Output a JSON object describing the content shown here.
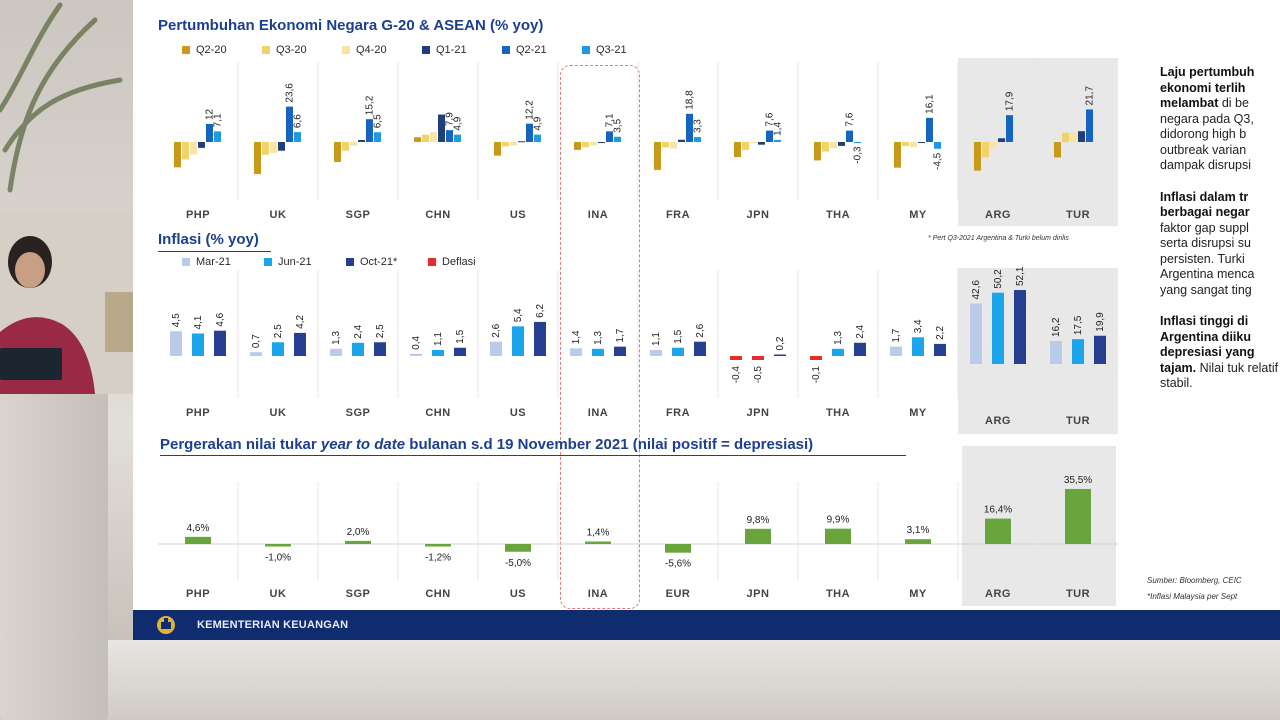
{
  "slide": {
    "title_growth": "Pertumbuhan Ekonomi Negara G-20 & ASEAN (% yoy)",
    "title_inflation": "Inflasi (% yoy)",
    "title_fx_pre": "Pergerakan nilai tukar ",
    "title_fx_italic": "year to date",
    "title_fx_post": " bulanan s.d 19 November 2021 (nilai positif = depresiasi)",
    "note_growth": "* Pert Q3-2021 Argentina & Turki belum dirilis",
    "footer": "KEMENTERIAN KEUANGAN"
  },
  "side_text": {
    "p1_bold": "Laju pertumbuh ekonomi terlih melambat",
    "p1_rest": " di be negara pada Q3, didorong high b outbreak varian dampak disrupsi",
    "p2_bold": "Inflasi dalam tr berbagai negar",
    "p2_rest": " faktor gap suppl serta disrupsi su persisten. Turki Argentina menca yang sangat ting",
    "p3_bold": "Inflasi tinggi di Argentina diiku depresiasi yang tajam.",
    "p3_rest": " Nilai tuk relatif stabil."
  },
  "sources": {
    "line1": "Sumber: Bloomberg, CEIC",
    "line2": "*Inflasi Malaysia per Sept"
  },
  "colors": {
    "q2_20": "#c9991c",
    "q3_20": "#f1d36a",
    "q4_20": "#f6e4a8",
    "q1_21": "#1f3f7a",
    "q2_21": "#1565c0",
    "q3_21": "#1e9be0",
    "mar_21": "#b9cbe8",
    "jun_21": "#1da5ec",
    "oct_21": "#25408f",
    "deflasi": "#e52d2d",
    "fx": "#6aa43c",
    "title": "#1d3f8f",
    "footer": "#0f2c6e"
  },
  "chart_data": [
    {
      "type": "bar",
      "title": "Pertumbuhan Ekonomi Negara G-20 & ASEAN (% yoy)",
      "categories": [
        "PHP",
        "UK",
        "SGP",
        "CHN",
        "US",
        "INA",
        "FRA",
        "JPN",
        "THA",
        "MY",
        "ARG",
        "TUR"
      ],
      "series": [
        {
          "name": "Q2-20",
          "values": [
            -16.9,
            -21.4,
            -13.3,
            3.2,
            -9.1,
            -5.3,
            -18.6,
            -10.1,
            -12.3,
            -17.1,
            -19.1,
            -10.3
          ]
        },
        {
          "name": "Q3-20",
          "values": [
            -11.6,
            -8.5,
            -5.8,
            4.9,
            -2.9,
            -3.5,
            -3.6,
            -5.4,
            -6.4,
            -2.7,
            -10.2,
            6.2
          ]
        },
        {
          "name": "Q4-20",
          "values": [
            -8.3,
            -7.3,
            -2.4,
            6.5,
            -2.3,
            -2.2,
            -4.3,
            -0.8,
            -4.2,
            -3.4,
            -4.3,
            6.2
          ]
        },
        {
          "name": "Q1-21",
          "values": [
            -3.9,
            -5.8,
            1.3,
            18.3,
            0.5,
            -0.7,
            1.5,
            -1.8,
            -2.6,
            -0.5,
            2.5,
            7.2
          ]
        },
        {
          "name": "Q2-21",
          "values": [
            12.0,
            23.6,
            15.2,
            7.9,
            12.2,
            7.1,
            18.8,
            7.6,
            7.6,
            16.1,
            17.9,
            21.7
          ]
        },
        {
          "name": "Q3-21",
          "values": [
            7.1,
            6.6,
            6.5,
            4.9,
            4.9,
            3.5,
            3.3,
            1.4,
            -0.3,
            -4.5,
            null,
            null
          ]
        }
      ],
      "labels_shown": {
        "Q2-21": true,
        "Q3-21": true
      }
    },
    {
      "type": "bar",
      "title": "Inflasi (% yoy)",
      "categories": [
        "PHP",
        "UK",
        "SGP",
        "CHN",
        "US",
        "INA",
        "FRA",
        "JPN",
        "THA",
        "MY",
        "ARG",
        "TUR"
      ],
      "series": [
        {
          "name": "Mar-21",
          "values": [
            4.5,
            0.7,
            1.3,
            0.4,
            2.6,
            1.4,
            1.1,
            -0.4,
            -0.1,
            1.7,
            42.6,
            16.2
          ]
        },
        {
          "name": "Jun-21",
          "values": [
            4.1,
            2.5,
            2.4,
            1.1,
            5.4,
            1.3,
            1.5,
            -0.5,
            1.3,
            3.4,
            50.2,
            17.5
          ]
        },
        {
          "name": "Oct-21*",
          "values": [
            4.6,
            4.2,
            2.5,
            1.5,
            6.2,
            1.7,
            2.6,
            0.2,
            2.4,
            2.2,
            52.1,
            19.9
          ]
        }
      ],
      "legend_extra": "Deflasi"
    },
    {
      "type": "bar",
      "title": "Pergerakan nilai tukar year to date bulanan s.d 19 November 2021 (nilai positif = depresiasi)",
      "categories": [
        "PHP",
        "UK",
        "SGP",
        "CHN",
        "US",
        "INA",
        "EUR",
        "JPN",
        "THA",
        "MY",
        "ARG",
        "TUR"
      ],
      "values": [
        4.6,
        -1.0,
        2.0,
        -1.2,
        -5.0,
        1.4,
        -5.6,
        9.8,
        9.9,
        3.1,
        16.4,
        35.5
      ],
      "value_labels": [
        "4,6%",
        "-1,0%",
        "2,0%",
        "-1,2%",
        "-5,0%",
        "1,4%",
        "-5,6%",
        "9,8%",
        "9,9%",
        "3,1%",
        "16,4%",
        "35,5%"
      ]
    }
  ]
}
